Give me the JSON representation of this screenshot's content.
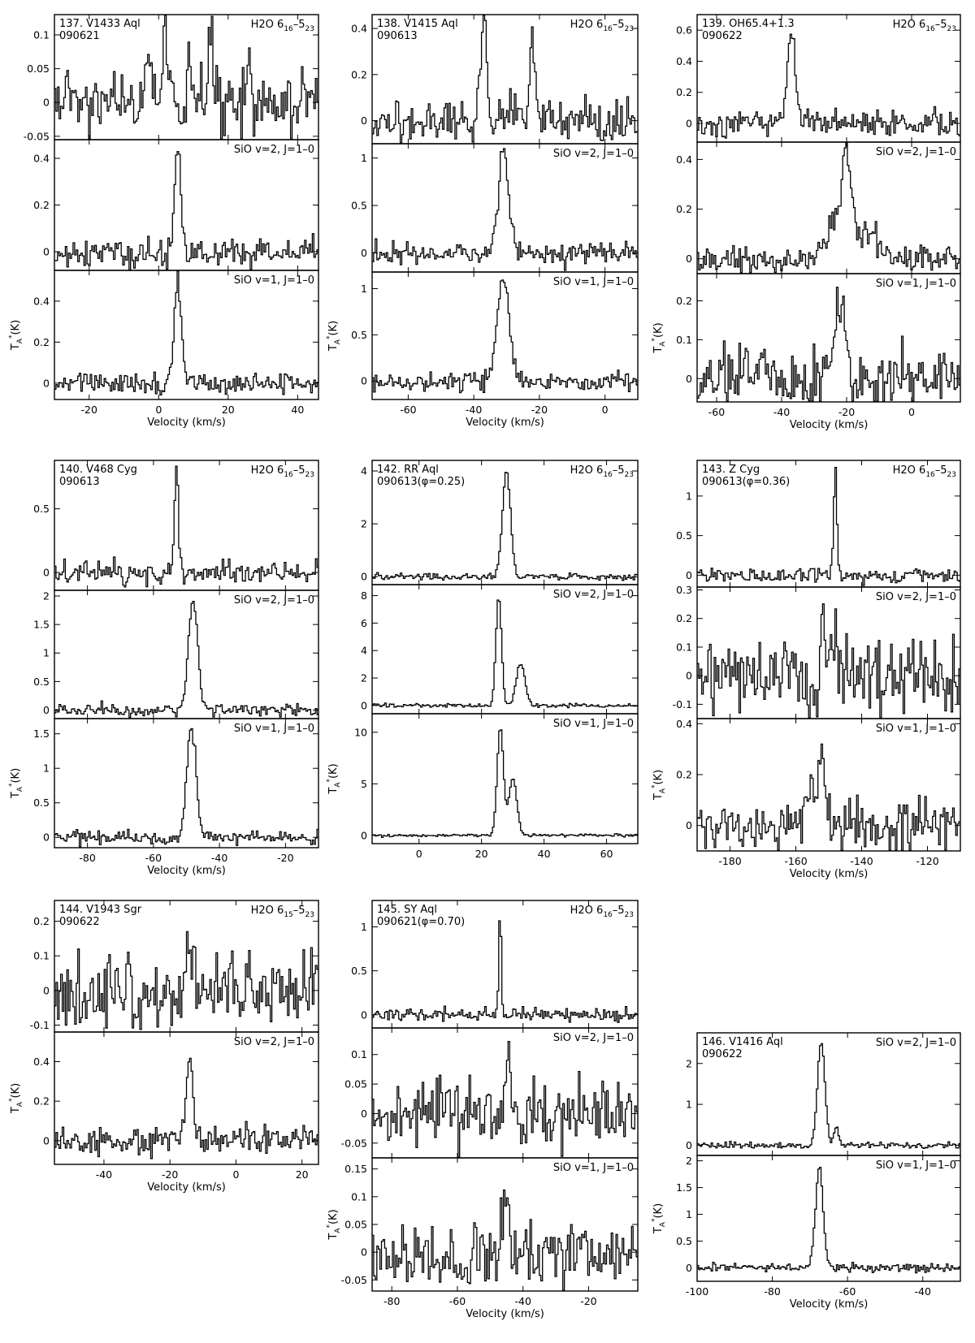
{
  "chart_data": [
    {
      "type": "line",
      "star_label": "137. V1433 Aql",
      "date_label": "090621",
      "xlim": [
        -30,
        46
      ],
      "xticks": [
        -20,
        0,
        20,
        40
      ],
      "xlabel": "Velocity (km/s)",
      "ylabel": "T_A*(K)",
      "panels": [
        {
          "line": {
            "main": "H2O 6",
            "sub1": "16",
            "mid": "–5",
            "sub2": "23"
          },
          "ylim": [
            -0.055,
            0.13
          ],
          "yticks": [
            -0.05,
            0,
            0.05,
            0.1
          ],
          "ytick_labels": [
            "-0.05",
            "0",
            "0.05",
            "0.1"
          ],
          "noise": 0.025,
          "seed": 11,
          "peaks": [
            [
              2,
              0.12,
              0.7
            ],
            [
              15,
              0.12,
              0.7
            ],
            [
              -3,
              0.05,
              0.6
            ],
            [
              9,
              0.05,
              0.6
            ],
            [
              26,
              0.05,
              0.6
            ]
          ]
        },
        {
          "line": {
            "main": "SiO v=2, J=1–0"
          },
          "ylim": [
            -0.08,
            0.48
          ],
          "yticks": [
            0,
            0.2,
            0.4
          ],
          "ytick_labels": [
            "0",
            "0.2",
            "0.4"
          ],
          "noise": 0.03,
          "seed": 12,
          "peaks": [
            [
              5.5,
              0.44,
              0.9
            ]
          ]
        },
        {
          "line": {
            "main": "SiO v=1, J=1–0"
          },
          "ylim": [
            -0.08,
            0.55
          ],
          "yticks": [
            0,
            0.2,
            0.4
          ],
          "ytick_labels": [
            "0",
            "0.2",
            "0.4"
          ],
          "noise": 0.028,
          "seed": 13,
          "peaks": [
            [
              5.5,
              0.5,
              1.0
            ]
          ]
        }
      ]
    },
    {
      "type": "line",
      "star_label": "138. V1415 Aql",
      "date_label": "090613",
      "xlim": [
        -71,
        10
      ],
      "xticks": [
        -60,
        -40,
        -20,
        0
      ],
      "xlabel": "Velocity (km/s)",
      "ylabel": "T_A*(K)",
      "panels": [
        {
          "line": {
            "main": "H2O 6",
            "sub1": "16",
            "mid": "–5",
            "sub2": "23"
          },
          "ylim": [
            -0.1,
            0.46
          ],
          "yticks": [
            0,
            0.2,
            0.4
          ],
          "ytick_labels": [
            "0",
            "0.2",
            "0.4"
          ],
          "noise": 0.05,
          "seed": 21,
          "peaks": [
            [
              -37,
              0.42,
              1.0
            ],
            [
              -22,
              0.3,
              0.9
            ]
          ]
        },
        {
          "line": {
            "main": "SiO v=2, J=1–0"
          },
          "ylim": [
            -0.2,
            1.15
          ],
          "yticks": [
            0,
            0.5,
            1
          ],
          "ytick_labels": [
            "0",
            "0.5",
            "1"
          ],
          "noise": 0.06,
          "seed": 22,
          "peaks": [
            [
              -31,
              1.05,
              1.6
            ]
          ]
        },
        {
          "line": {
            "main": "SiO v=1, J=1–0"
          },
          "ylim": [
            -0.2,
            1.18
          ],
          "yticks": [
            0,
            0.5,
            1
          ],
          "ytick_labels": [
            "0",
            "0.5",
            "1"
          ],
          "noise": 0.05,
          "seed": 23,
          "peaks": [
            [
              -31,
              1.1,
              1.8
            ]
          ]
        }
      ]
    },
    {
      "type": "line",
      "star_label": "139. OH65.4+1.3",
      "date_label": "090622",
      "xlim": [
        -66,
        15
      ],
      "xticks": [
        -60,
        -40,
        -20,
        0
      ],
      "xlabel": "Velocity (km/s)",
      "ylabel": "T_A*(K)",
      "panels": [
        {
          "line": {
            "main": "H2O 6",
            "sub1": "16",
            "mid": "–5",
            "sub2": "23"
          },
          "ylim": [
            -0.12,
            0.7
          ],
          "yticks": [
            0,
            0.2,
            0.4,
            0.6
          ],
          "ytick_labels": [
            "0",
            "0.2",
            "0.4",
            "0.6"
          ],
          "noise": 0.04,
          "seed": 31,
          "peaks": [
            [
              -37,
              0.6,
              1.2
            ]
          ]
        },
        {
          "line": {
            "main": "SiO v=2, J=1–0"
          },
          "ylim": [
            -0.06,
            0.47
          ],
          "yticks": [
            0,
            0.2,
            0.4
          ],
          "ytick_labels": [
            "0",
            "0.2",
            "0.4"
          ],
          "noise": 0.03,
          "seed": 32,
          "peaks": [
            [
              -20,
              0.38,
              1.5
            ],
            [
              -24,
              0.14,
              2.5
            ],
            [
              -14,
              0.08,
              4.0
            ]
          ]
        },
        {
          "line": {
            "main": "SiO v=1, J=1–0"
          },
          "ylim": [
            -0.06,
            0.27
          ],
          "yticks": [
            0,
            0.1,
            0.2
          ],
          "ytick_labels": [
            "0",
            "0.1",
            "0.2"
          ],
          "noise": 0.04,
          "seed": 33,
          "peaks": [
            [
              -22,
              0.2,
              1.6
            ]
          ]
        }
      ]
    },
    {
      "type": "line",
      "star_label": "140. V468 Cyg",
      "date_label": "090613",
      "xlim": [
        -90,
        -10
      ],
      "xticks": [
        -80,
        -60,
        -40,
        -20
      ],
      "xlabel": "Velocity (km/s)",
      "ylabel": "T_A*(K)",
      "panels": [
        {
          "line": {
            "main": "H2O 6",
            "sub1": "16",
            "mid": "–5",
            "sub2": "23"
          },
          "ylim": [
            -0.14,
            0.88
          ],
          "yticks": [
            0,
            0.5
          ],
          "ytick_labels": [
            "0",
            "0.5"
          ],
          "noise": 0.05,
          "seed": 41,
          "peaks": [
            [
              -53,
              0.82,
              0.6
            ]
          ]
        },
        {
          "line": {
            "main": "SiO v=2, J=1–0"
          },
          "ylim": [
            -0.15,
            2.1
          ],
          "yticks": [
            0,
            0.5,
            1,
            1.5,
            2
          ],
          "ytick_labels": [
            "0",
            "0.5",
            "1",
            "1.5",
            "2"
          ],
          "noise": 0.06,
          "seed": 42,
          "peaks": [
            [
              -48,
              1.95,
              1.4
            ]
          ]
        },
        {
          "line": {
            "main": "SiO v=1, J=1–0"
          },
          "ylim": [
            -0.15,
            1.72
          ],
          "yticks": [
            0,
            0.5,
            1,
            1.5
          ],
          "ytick_labels": [
            "0",
            "0.5",
            "1",
            "1.5"
          ],
          "noise": 0.05,
          "seed": 43,
          "peaks": [
            [
              -48.5,
              1.6,
              1.4
            ]
          ]
        }
      ]
    },
    {
      "type": "line",
      "star_label": "142. RR Aql",
      "date_label": "090613(φ=0.25)",
      "xlim": [
        -15,
        70
      ],
      "xticks": [
        0,
        20,
        40,
        60
      ],
      "xlabel": "",
      "ylabel": "T_A*(K)",
      "panels": [
        {
          "line": {
            "main": "H2O 6",
            "sub1": "16",
            "mid": "–5",
            "sub2": "23"
          },
          "ylim": [
            -0.3,
            4.4
          ],
          "yticks": [
            0,
            2,
            4
          ],
          "ytick_labels": [
            "0",
            "2",
            "4"
          ],
          "noise": 0.06,
          "seed": 51,
          "peaks": [
            [
              28,
              4.0,
              1.3
            ]
          ]
        },
        {
          "line": {
            "main": "SiO v=2, J=1–0"
          },
          "ylim": [
            -0.6,
            8.8
          ],
          "yticks": [
            0,
            2,
            4,
            6,
            8
          ],
          "ytick_labels": [
            "0",
            "2",
            "4",
            "6",
            "8"
          ],
          "noise": 0.07,
          "seed": 52,
          "peaks": [
            [
              25.5,
              8.0,
              0.9
            ],
            [
              32.5,
              3.1,
              1.4
            ]
          ]
        },
        {
          "line": {
            "main": "SiO v=1, J=1–0"
          },
          "ylim": [
            -0.8,
            11.8
          ],
          "yticks": [
            0,
            5,
            10
          ],
          "ytick_labels": [
            "0",
            "5",
            "10"
          ],
          "noise": 0.07,
          "seed": 53,
          "peaks": [
            [
              26,
              10.5,
              1.0
            ],
            [
              30,
              5.5,
              1.3
            ]
          ]
        }
      ]
    },
    {
      "type": "line",
      "star_label": "143. Z Cyg",
      "date_label": "090613(φ=0.36)",
      "xlim": [
        -190,
        -110
      ],
      "xticks": [
        -180,
        -160,
        -140,
        -120
      ],
      "xlabel": "Velocity (km/s)",
      "ylabel": "T_A*(K)",
      "panels": [
        {
          "line": {
            "main": "H2O 6",
            "sub1": "16",
            "mid": "–5",
            "sub2": "23"
          },
          "ylim": [
            -0.15,
            1.45
          ],
          "yticks": [
            0,
            0.5,
            1
          ],
          "ytick_labels": [
            "0",
            "0.5",
            "1"
          ],
          "noise": 0.05,
          "seed": 61,
          "peaks": [
            [
              -148,
              1.35,
              0.5
            ]
          ]
        },
        {
          "line": {
            "main": "SiO v=2, J=1–0"
          },
          "ylim": [
            -0.15,
            0.31
          ],
          "yticks": [
            -0.1,
            0,
            0.1,
            0.2,
            0.3
          ],
          "ytick_labels": [
            "-0.1",
            "0",
            "0.1",
            "0.2",
            "0.3"
          ],
          "noise": 0.06,
          "seed": 62,
          "peaks": [
            [
              -152,
              0.2,
              0.6
            ],
            [
              -148,
              0.14,
              0.8
            ]
          ]
        },
        {
          "line": {
            "main": "SiO v=1, J=1–0"
          },
          "ylim": [
            -0.1,
            0.42
          ],
          "yticks": [
            0,
            0.2,
            0.4
          ],
          "ytick_labels": [
            "0",
            "0.2",
            "0.4"
          ],
          "noise": 0.05,
          "seed": 63,
          "peaks": [
            [
              -152,
              0.3,
              0.8
            ],
            [
              -155,
              0.1,
              3.0
            ]
          ]
        }
      ]
    },
    {
      "type": "line",
      "star_label": "144. V1943 Sgr",
      "date_label": "090622",
      "xlim": [
        -55,
        25
      ],
      "xticks": [
        -40,
        -20,
        0,
        20
      ],
      "xlabel": "Velocity (km/s)",
      "ylabel": "T_A*(K)",
      "panels": [
        {
          "line": {
            "main": "H2O 6",
            "sub1": "15",
            "mid": "–5",
            "sub2": "23"
          },
          "ylim": [
            -0.12,
            0.26
          ],
          "yticks": [
            -0.1,
            0,
            0.1,
            0.2
          ],
          "ytick_labels": [
            "-0.1",
            "0",
            "0.1",
            "0.2"
          ],
          "noise": 0.05,
          "seed": 71,
          "peaks": [
            [
              -14,
              0.16,
              0.8
            ]
          ]
        },
        {
          "line": {
            "main": "SiO v=2, J=1–0"
          },
          "ylim": [
            -0.12,
            0.55
          ],
          "yticks": [
            0,
            0.2,
            0.4
          ],
          "ytick_labels": [
            "0",
            "0.2",
            "0.4"
          ],
          "noise": 0.035,
          "seed": 72,
          "peaks": [
            [
              -14,
              0.43,
              1.0
            ]
          ]
        }
      ]
    },
    {
      "type": "line",
      "star_label": "145. SY Aql",
      "date_label": "090621(φ=0.70)",
      "xlim": [
        -86,
        -5
      ],
      "xticks": [
        -80,
        -60,
        -40,
        -20
      ],
      "xlabel": "Velocity (km/s)",
      "ylabel": "T_A*(K)",
      "panels": [
        {
          "line": {
            "main": "H2O 6",
            "sub1": "16",
            "mid": "–5",
            "sub2": "23"
          },
          "ylim": [
            -0.15,
            1.3
          ],
          "yticks": [
            0,
            0.5,
            1
          ],
          "ytick_labels": [
            "0",
            "0.5",
            "1"
          ],
          "noise": 0.035,
          "seed": 81,
          "peaks": [
            [
              -47,
              1.22,
              0.4
            ]
          ]
        },
        {
          "line": {
            "main": "SiO v=2, J=1–0"
          },
          "ylim": [
            -0.075,
            0.145
          ],
          "yticks": [
            -0.05,
            0,
            0.05,
            0.1
          ],
          "ytick_labels": [
            "-0.05",
            "0",
            "0.05",
            "0.1"
          ],
          "noise": 0.03,
          "seed": 82,
          "peaks": [
            [
              -44,
              0.09,
              0.9
            ]
          ]
        },
        {
          "line": {
            "main": "SiO v=1, J=1–0"
          },
          "ylim": [
            -0.07,
            0.17
          ],
          "yticks": [
            -0.05,
            0,
            0.05,
            0.1,
            0.15
          ],
          "ytick_labels": [
            "-0.05",
            "0",
            "0.05",
            "0.1",
            "0.15"
          ],
          "noise": 0.03,
          "seed": 83,
          "peaks": [
            [
              -45,
              0.11,
              0.9
            ]
          ]
        }
      ]
    },
    {
      "type": "line",
      "star_label": "146. V1416 Aql",
      "date_label": "090622",
      "xlim": [
        -100,
        -30
      ],
      "xticks": [
        -100,
        -80,
        -60,
        -40
      ],
      "xlabel": "Velocity (km/s)",
      "ylabel": "T_A*(K)",
      "panels": [
        {
          "line": {
            "main": "SiO v=2, J=1–0"
          },
          "ylim": [
            -0.25,
            2.75
          ],
          "yticks": [
            0,
            1,
            2
          ],
          "ytick_labels": [
            "0",
            "1",
            "2"
          ],
          "noise": 0.04,
          "seed": 91,
          "peaks": [
            [
              -67,
              2.55,
              1.0
            ],
            [
              -63,
              0.5,
              0.6
            ]
          ]
        },
        {
          "line": {
            "main": "SiO v=1, J=1–0"
          },
          "ylim": [
            -0.25,
            2.1
          ],
          "yticks": [
            0,
            0.5,
            1,
            1.5,
            2
          ],
          "ytick_labels": [
            "0",
            "0.5",
            "1",
            "1.5",
            "2"
          ],
          "noise": 0.04,
          "seed": 92,
          "peaks": [
            [
              -67.5,
              1.9,
              1.0
            ]
          ]
        }
      ]
    }
  ]
}
